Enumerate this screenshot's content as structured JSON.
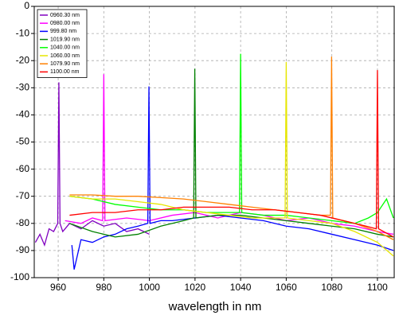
{
  "chart_data": {
    "type": "line",
    "x_label": "wavelength in nm",
    "xlim": [
      949.5,
      1107.7
    ],
    "ylim": [
      -100,
      0
    ],
    "xticks": [
      960,
      980,
      1000,
      1020,
      1040,
      1060,
      1080,
      1100
    ],
    "yticks": [
      0,
      -10,
      -20,
      -30,
      -40,
      -50,
      -60,
      -70,
      -80,
      -90,
      -100
    ],
    "grid": true,
    "legend": "upper left",
    "series": [
      {
        "name": "0960.30 nm",
        "color": "#8000c0",
        "x": [
          950,
          952,
          954,
          956,
          958,
          959.8,
          960.3,
          960.8,
          962,
          965,
          970,
          975,
          980,
          985,
          990,
          995,
          1000
        ],
        "values": [
          -87,
          -84,
          -88,
          -82,
          -83,
          -80,
          -28,
          -80,
          -83,
          -80,
          -82,
          -79,
          -81,
          -80,
          -83,
          -82,
          -84
        ]
      },
      {
        "name": "0980.00 nm",
        "color": "#ff00ff",
        "x": [
          963,
          970,
          975,
          979.5,
          980,
          980.5,
          990,
          1000,
          1010,
          1020,
          1030,
          1040,
          1050,
          1060,
          1070,
          1080,
          1090,
          1100,
          1107
        ],
        "values": [
          -79,
          -80,
          -78,
          -79,
          -25,
          -79,
          -78,
          -79,
          -77,
          -76,
          -78,
          -76,
          -77,
          -79,
          -78,
          -80,
          -81,
          -83,
          -84
        ]
      },
      {
        "name": "999.80 nm",
        "color": "#0000ff",
        "x": [
          966,
          967,
          970,
          975,
          980,
          985,
          990,
          995,
          999.3,
          999.8,
          1000.3,
          1005,
          1010,
          1020,
          1030,
          1040,
          1050,
          1060,
          1070,
          1080,
          1090,
          1100,
          1107
        ],
        "values": [
          -88,
          -97,
          -86,
          -87,
          -85,
          -84,
          -82,
          -81,
          -80,
          -29.5,
          -80,
          -79,
          -79,
          -78,
          -77,
          -78,
          -79,
          -81,
          -82,
          -84,
          -86,
          -88,
          -90
        ]
      },
      {
        "name": "1019.90 nm",
        "color": "#008000",
        "x": [
          965,
          975,
          985,
          995,
          1005,
          1015,
          1019.4,
          1019.9,
          1020.4,
          1030,
          1040,
          1050,
          1060,
          1070,
          1080,
          1090,
          1100,
          1107
        ],
        "values": [
          -80,
          -83,
          -85,
          -84,
          -81,
          -79,
          -78,
          -23,
          -78,
          -77,
          -77,
          -78,
          -79,
          -80,
          -81,
          -82,
          -84,
          -85
        ]
      },
      {
        "name": "1040.00 nm",
        "color": "#00ff00",
        "x": [
          965,
          975,
          985,
          995,
          1005,
          1015,
          1025,
          1035,
          1039.5,
          1040,
          1040.5,
          1050,
          1060,
          1070,
          1080,
          1090,
          1096,
          1100,
          1104,
          1107
        ],
        "values": [
          -70,
          -71,
          -73,
          -74,
          -75,
          -75,
          -76,
          -76,
          -76,
          -17.5,
          -76,
          -77,
          -77,
          -78,
          -79,
          -80,
          -78,
          -76,
          -71,
          -78
        ]
      },
      {
        "name": "1060.00 nm",
        "color": "#e6e600",
        "x": [
          965,
          975,
          985,
          995,
          1005,
          1015,
          1025,
          1035,
          1045,
          1055,
          1059.5,
          1060,
          1060.5,
          1070,
          1080,
          1090,
          1100,
          1107
        ],
        "values": [
          -70,
          -71,
          -71,
          -72,
          -73,
          -75,
          -76,
          -77,
          -78,
          -78,
          -78,
          -20.5,
          -78,
          -79,
          -80,
          -83,
          -87,
          -92
        ]
      },
      {
        "name": "1079.90 nm",
        "color": "#ff8000",
        "x": [
          965,
          975,
          985,
          995,
          1005,
          1015,
          1025,
          1035,
          1045,
          1055,
          1065,
          1075,
          1079.4,
          1079.9,
          1080.4,
          1090,
          1100,
          1107
        ],
        "values": [
          -69.5,
          -69.5,
          -70,
          -70,
          -70.5,
          -71,
          -72,
          -73,
          -74,
          -75,
          -76,
          -77,
          -77,
          -18.5,
          -78,
          -80,
          -83,
          -86
        ]
      },
      {
        "name": "1100.00 nm",
        "color": "#ff0000",
        "x": [
          965,
          975,
          985,
          995,
          1005,
          1015,
          1025,
          1035,
          1045,
          1055,
          1065,
          1075,
          1085,
          1095,
          1099.5,
          1100,
          1100.5,
          1107
        ],
        "values": [
          -77,
          -76,
          -76,
          -75,
          -75,
          -74,
          -74,
          -74,
          -75,
          -75,
          -76,
          -77,
          -79,
          -81,
          -82,
          -23.5,
          -82,
          -85
        ]
      }
    ]
  }
}
